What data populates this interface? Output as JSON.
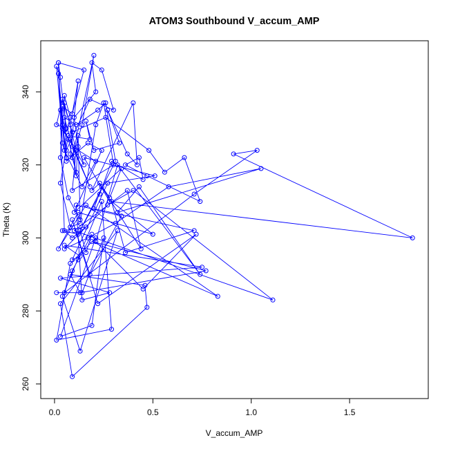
{
  "chart_data": {
    "type": "line",
    "marker": "circle-open",
    "title": "ATOM3 Southbound V_accum_AMP",
    "xlabel": "V_accum_AMP",
    "ylabel": "Theta (K)",
    "xlim": [
      -0.07,
      1.9
    ],
    "ylim": [
      256,
      354
    ],
    "xticks": [
      0.0,
      0.5,
      1.0,
      1.5
    ],
    "xtick_labels": [
      "0.0",
      "0.5",
      "1.0",
      "1.5"
    ],
    "yticks": [
      260,
      280,
      300,
      320,
      340
    ],
    "ytick_labels": [
      "260",
      "280",
      "300",
      "320",
      "340"
    ],
    "grid": false,
    "legend": "none",
    "color": "#0000ff",
    "series": [
      {
        "x": [
          0.03,
          0.01,
          0.03,
          0.06,
          0.08,
          0.05,
          0.04,
          0.15,
          0.12,
          0.1,
          0.21,
          0.19,
          0.24,
          0.3,
          0.18,
          0.06,
          0.04,
          0.07,
          0.11,
          0.09,
          0.14,
          0.2,
          0.09,
          0.08,
          0.12,
          0.08,
          0.11,
          0.12,
          0.13,
          0.07,
          0.03,
          0.04,
          0.09,
          0.15,
          0.02,
          0.04,
          0.06,
          0.05,
          0.11,
          0.09,
          0.3,
          0.25,
          0.21,
          0.13,
          0.08,
          0.03,
          0.07,
          0.18,
          0.16,
          0.2,
          0.33,
          0.27,
          0.37,
          0.42,
          0.4,
          0.19,
          0.23,
          0.28,
          0.34,
          0.1,
          0.24,
          0.17,
          0.06,
          0.02,
          0.05,
          0.14,
          0.21,
          0.09,
          0.18,
          0.08,
          0.05,
          0.11,
          0.22,
          0.26,
          0.31,
          0.12,
          0.04,
          0.16,
          0.09,
          0.05,
          0.02,
          0.06,
          0.01,
          0.04,
          0.09,
          0.26,
          0.48,
          0.56,
          0.66,
          0.74,
          0.47,
          0.36,
          0.43,
          0.45,
          0.29,
          0.23,
          0.13,
          0.16,
          0.19,
          0.12,
          0.09,
          0.05,
          0.71,
          1.03,
          0.91,
          1.82,
          0.28,
          0.15,
          0.51,
          0.27,
          0.09,
          0.13,
          0.05,
          0.75,
          0.03,
          0.28,
          0.14,
          0.11,
          0.34,
          0.18,
          0.09,
          0.22,
          0.72,
          0.45,
          0.21,
          0.32,
          0.74,
          0.43,
          0.32,
          1.05,
          0.58,
          0.31,
          0.17,
          0.05,
          0.27,
          0.4,
          1.11,
          0.1,
          0.37,
          0.44,
          0.24,
          0.2,
          0.71,
          0.36,
          0.29,
          0.5,
          0.12,
          0.02,
          0.16,
          0.83,
          0.19,
          0.77,
          0.13,
          0.08,
          0.46,
          0.47,
          0.09,
          0.03,
          0.32,
          0.13,
          0.04,
          0.24,
          0.29,
          0.01,
          0.08,
          0.21,
          0.03,
          0.19,
          0.25,
          0.14,
          0.01
        ],
        "y": [
          344,
          347,
          335,
          329,
          333,
          339,
          330,
          320,
          325,
          333,
          340,
          348,
          346,
          335,
          338,
          324,
          331,
          327,
          318,
          322,
          331,
          350,
          322,
          323,
          343,
          331,
          317,
          328,
          305,
          311,
          322,
          336,
          334,
          346,
          348,
          326,
          322,
          337,
          324,
          313,
          320,
          337,
          331,
          304,
          303,
          315,
          328,
          327,
          332,
          324,
          326,
          335,
          323,
          320,
          337,
          313,
          315,
          311,
          319,
          307,
          324,
          326,
          321,
          345,
          324,
          314,
          321,
          325,
          314,
          327,
          333,
          331,
          335,
          337,
          321,
          301,
          302,
          303,
          300,
          302,
          348,
          330,
          331,
          338,
          329,
          333,
          324,
          318,
          322,
          310,
          317,
          320,
          322,
          316,
          321,
          312,
          302,
          296,
          301,
          294,
          291,
          285,
          312,
          324,
          323,
          300,
          310,
          322,
          317,
          315,
          294,
          295,
          298,
          292,
          289,
          285,
          283,
          309,
          306,
          290,
          305,
          282,
          301,
          286,
          299,
          320,
          290,
          314,
          307,
          319,
          314,
          304,
          300,
          297,
          309,
          313,
          283,
          302,
          313,
          297,
          314,
          308,
          302,
          296,
          310,
          301,
          307,
          297,
          309,
          284,
          299,
          291,
          285,
          290,
          287,
          281,
          262,
          282,
          302,
          269,
          284,
          310,
          275,
          272,
          293,
          300,
          273,
          276,
          300,
          285,
          285
        ]
      }
    ]
  }
}
